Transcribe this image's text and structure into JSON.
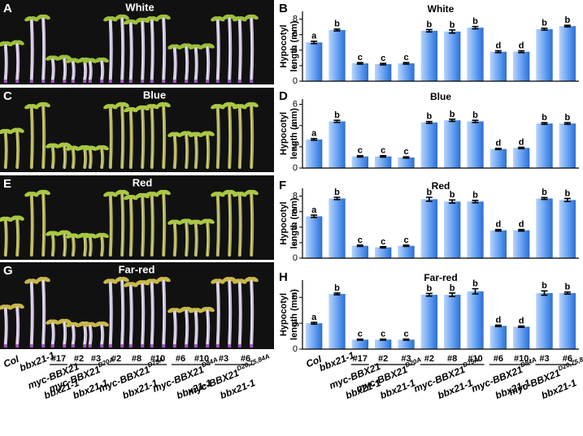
{
  "photos": [
    {
      "letter": "A",
      "title": "White"
    },
    {
      "letter": "C",
      "title": "Blue"
    },
    {
      "letter": "E",
      "title": "Red"
    },
    {
      "letter": "G",
      "title": "Far-red"
    }
  ],
  "chart_data": [
    {
      "type": "bar",
      "letter": "B",
      "title": "White",
      "y_label": [
        "Hypocotyl",
        "length (mm)"
      ],
      "color": "#5a9af0",
      "values": [
        5.0,
        6.6,
        2.3,
        2.2,
        2.3,
        6.5,
        6.4,
        6.9,
        3.8,
        3.8,
        6.7,
        7.1
      ],
      "errors": [
        0.15,
        0.12,
        0.1,
        0.1,
        0.1,
        0.15,
        0.2,
        0.15,
        0.12,
        0.12,
        0.12,
        0.1
      ],
      "letters": [
        "a",
        "b",
        "c",
        "c",
        "c",
        "b",
        "b",
        "b",
        "d",
        "d",
        "b",
        "b"
      ],
      "ylim": [
        0,
        9
      ],
      "yticks": [
        0,
        2,
        4,
        6,
        8
      ]
    },
    {
      "type": "bar",
      "letter": "D",
      "title": "Blue",
      "y_label": [
        "Hypocotyl",
        "length (mm)"
      ],
      "color": "#5a9af0",
      "values": [
        2.7,
        4.4,
        1.1,
        1.1,
        1.0,
        4.3,
        4.5,
        4.4,
        1.8,
        1.9,
        4.2,
        4.2
      ],
      "errors": [
        0.08,
        0.1,
        0.06,
        0.06,
        0.06,
        0.08,
        0.1,
        0.1,
        0.06,
        0.06,
        0.08,
        0.08
      ],
      "letters": [
        "a",
        "b",
        "c",
        "c",
        "c",
        "b",
        "b",
        "b",
        "d",
        "d",
        "b",
        "b"
      ],
      "ylim": [
        0,
        6.5
      ],
      "yticks": [
        0,
        2,
        4,
        6
      ]
    },
    {
      "type": "bar",
      "letter": "F",
      "title": "Red",
      "y_label": [
        "Hypocotyl",
        "length (mm)"
      ],
      "color": "#5a9af0",
      "values": [
        5.4,
        7.7,
        1.6,
        1.4,
        1.6,
        7.6,
        7.3,
        7.3,
        3.6,
        3.6,
        7.7,
        7.5
      ],
      "errors": [
        0.15,
        0.15,
        0.08,
        0.08,
        0.08,
        0.25,
        0.2,
        0.15,
        0.1,
        0.1,
        0.12,
        0.2
      ],
      "letters": [
        "a",
        "b",
        "c",
        "c",
        "c",
        "b",
        "b",
        "b",
        "d",
        "d",
        "b",
        "b"
      ],
      "ylim": [
        0,
        9
      ],
      "yticks": [
        0,
        2,
        4,
        6,
        8
      ]
    },
    {
      "type": "bar",
      "letter": "H",
      "title": "Far-red",
      "y_label": [
        "Hypocotyl",
        "length (mm)"
      ],
      "color": "#5a9af0",
      "categories": [
        "Col",
        "bbx21-1",
        "#17",
        "#2",
        "#3",
        "#2",
        "#8",
        "#10",
        "#6",
        "#10",
        "#3",
        "#6"
      ],
      "groups": [
        {
          "name": "myc-BBX21",
          "background": "bbx21-1"
        },
        {
          "name": "myc-BBX21",
          "superscript": "D20A",
          "background": "bbx21-1"
        },
        {
          "name": "myc-BBX21",
          "superscript": "D75A",
          "background": "bbx21-1"
        },
        {
          "name": "myc-BBX21",
          "superscript": "D84A",
          "background": "bbx21-1"
        },
        {
          "name": "myc-BBX21",
          "superscript": "D20,75,84A",
          "background": "bbx21-1"
        }
      ],
      "values": [
        3.0,
        6.4,
        1.1,
        1.1,
        1.1,
        6.3,
        6.3,
        6.7,
        2.7,
        2.6,
        6.5,
        6.5
      ],
      "errors": [
        0.1,
        0.1,
        0.06,
        0.06,
        0.06,
        0.15,
        0.2,
        0.3,
        0.08,
        0.08,
        0.25,
        0.12
      ],
      "letters": [
        "a",
        "b",
        "c",
        "c",
        "c",
        "b",
        "b",
        "b",
        "d",
        "d",
        "b",
        "b"
      ],
      "ylim": [
        0,
        8
      ],
      "yticks": [
        0,
        3,
        6
      ]
    }
  ]
}
